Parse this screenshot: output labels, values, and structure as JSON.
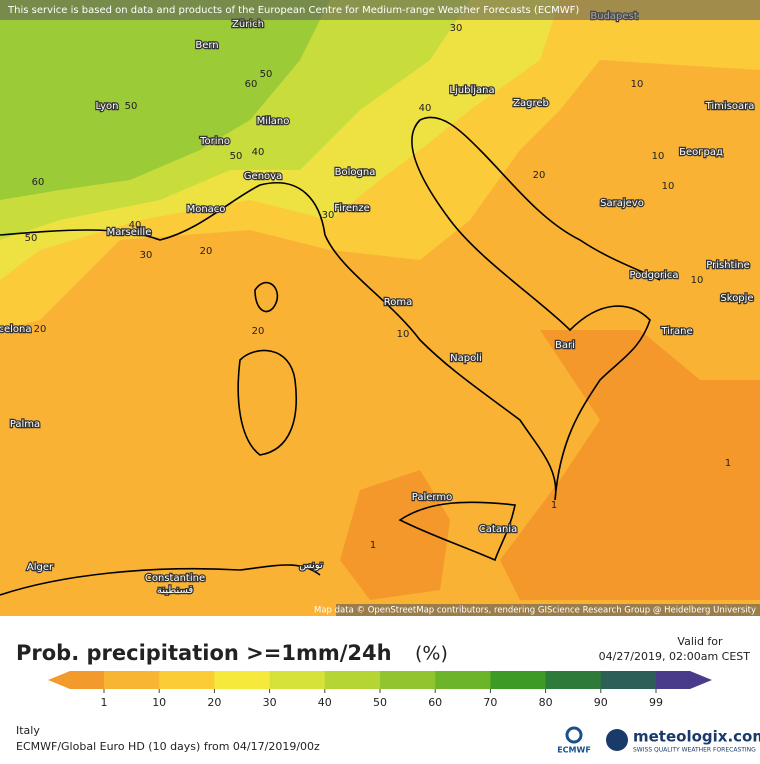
{
  "header": {
    "attribution": "This service is based on data and products of the European Centre for Medium-range Weather Forecasts (ECMWF)"
  },
  "map": {
    "cities": [
      "Zürich",
      "Bern",
      "Lyon",
      "Milano",
      "Torino",
      "Genova",
      "Bologna",
      "Monaco",
      "Firenze",
      "Marseille",
      "Roma",
      "Napoli",
      "Bari",
      "Palermo",
      "Catania",
      "Palma",
      "Alger",
      "Constantine",
      "قسنطينة",
      "تونس",
      "celona",
      "Ljubljana",
      "Zagreb",
      "Budapest",
      "Timisoara",
      "Београд",
      "Sarajevo",
      "Podgorica",
      "Prishtine",
      "Skopje",
      "Tirane"
    ],
    "contour_labels": [
      30,
      50,
      60,
      50,
      60,
      50,
      40,
      50,
      40,
      30,
      40,
      30,
      20,
      20,
      20,
      10,
      10,
      10,
      10,
      20,
      10,
      1,
      1,
      1
    ],
    "credit": "Map data © OpenStreetMap contributors, rendering GIScience Research Group @ Heidelberg University"
  },
  "legend": {
    "title": "Prob. precipitation >=1mm/24h",
    "unit": "(%)",
    "valid_label": "Valid for",
    "valid_time": "04/27/2019, 02:00am CEST",
    "ticks": [
      1,
      10,
      20,
      30,
      40,
      50,
      60,
      70,
      80,
      90,
      99
    ],
    "colors": [
      "#f39a2c",
      "#f7b531",
      "#fbcc35",
      "#f7e93c",
      "#d6e23a",
      "#b5d534",
      "#91c52f",
      "#6cb52a",
      "#3d9a25",
      "#2d7a3a",
      "#2e5f57",
      "#4a3a8a"
    ]
  },
  "footer": {
    "region": "Italy",
    "model": "ECMWF/Global Euro HD (10 days) from 04/17/2019/00z",
    "ecmwf": "ECMWF",
    "brand": "meteologix.com",
    "tagline": "SWISS QUALITY WEATHER FORECASTING"
  }
}
